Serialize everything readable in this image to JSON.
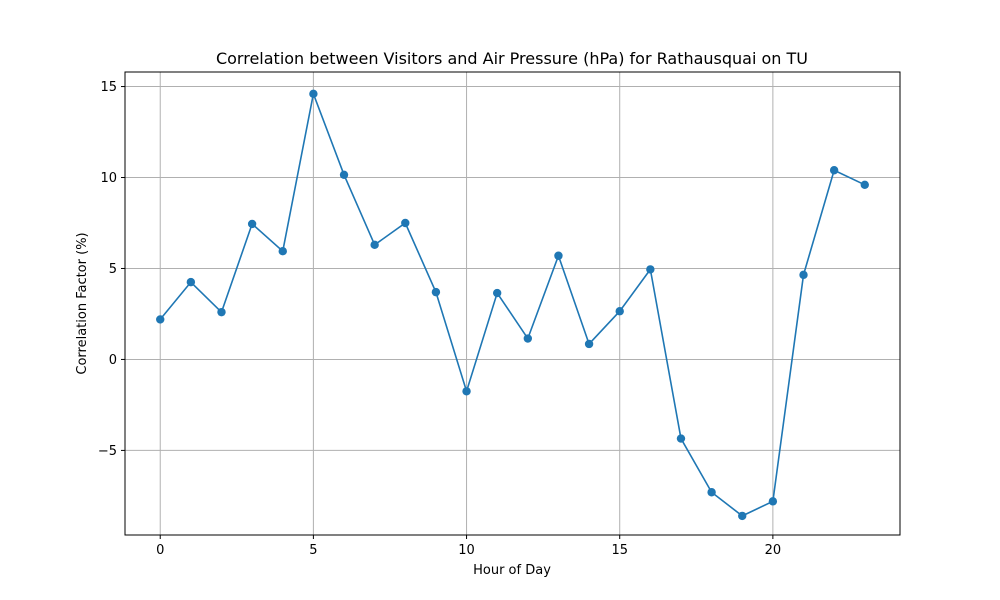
{
  "chart_data": {
    "type": "line",
    "title": "Correlation between Visitors and Air Pressure (hPa) for Rathausquai on TU",
    "xlabel": "Hour of Day",
    "ylabel": "Correlation Factor (%)",
    "xlim": [
      -1.15,
      24.15
    ],
    "ylim": [
      -9.65,
      15.8
    ],
    "grid": true,
    "x_ticks": [
      0,
      5,
      10,
      15,
      20
    ],
    "x_tick_labels": [
      "0",
      "5",
      "10",
      "15",
      "20"
    ],
    "y_ticks": [
      15,
      10,
      5,
      0,
      -5
    ],
    "y_tick_labels": [
      "15",
      "10",
      "5",
      "0",
      "−5"
    ],
    "series": [
      {
        "name": "Correlation",
        "color": "#1f77b4",
        "marker": "circle",
        "x": [
          0,
          1,
          2,
          3,
          4,
          5,
          6,
          7,
          8,
          9,
          10,
          11,
          12,
          13,
          14,
          15,
          16,
          17,
          18,
          19,
          20,
          21,
          22,
          23
        ],
        "values": [
          2.2,
          4.25,
          2.6,
          7.45,
          5.95,
          14.6,
          10.15,
          6.3,
          7.5,
          3.7,
          -1.75,
          3.65,
          1.15,
          5.7,
          0.85,
          2.65,
          4.95,
          -4.35,
          -7.3,
          -8.6,
          -7.8,
          4.65,
          10.4,
          9.6
        ]
      }
    ]
  }
}
